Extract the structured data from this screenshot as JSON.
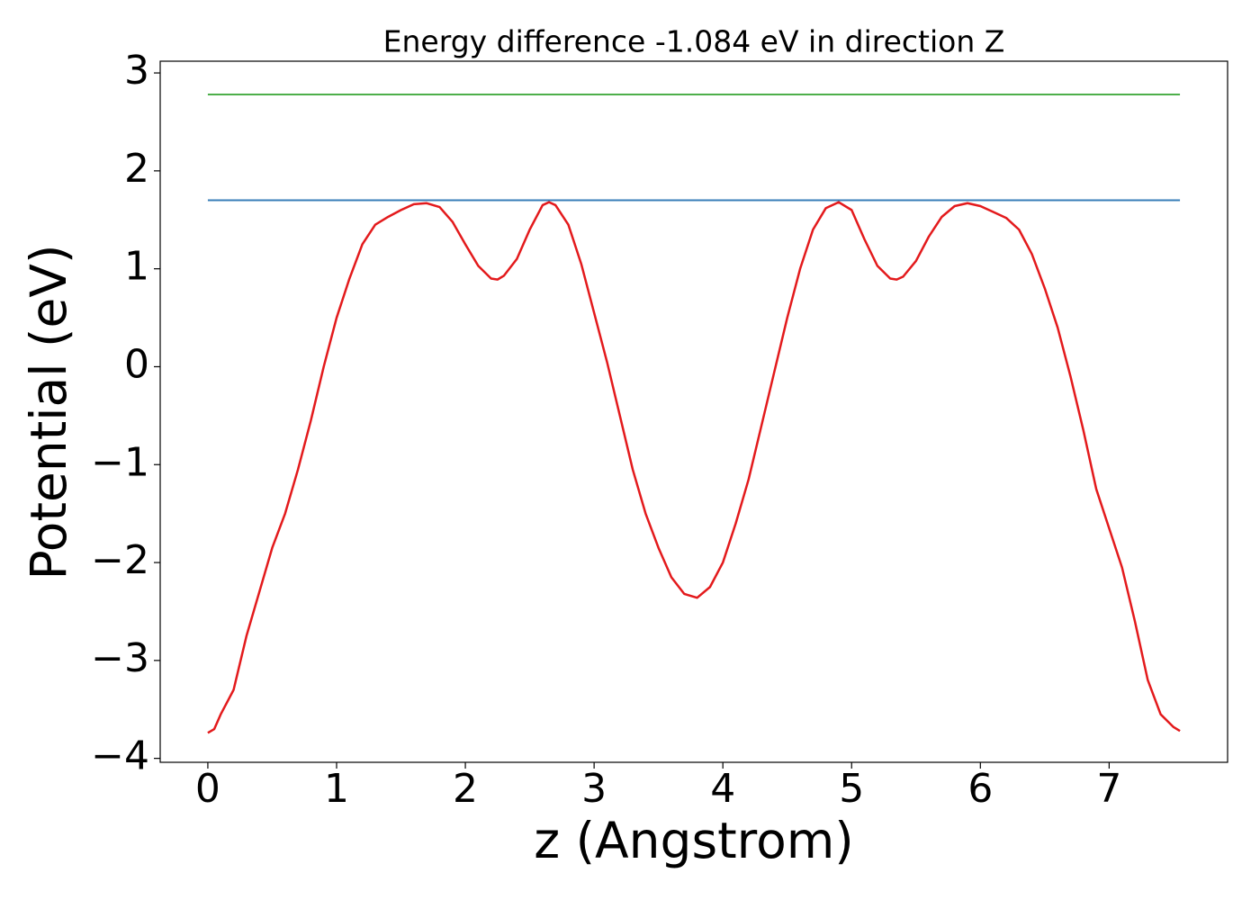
{
  "chart_data": {
    "type": "line",
    "title": "Energy difference -1.084 eV in direction Z",
    "xlabel": "z (Angstrom)",
    "ylabel": "Potential (eV)",
    "xlim": [
      -0.37,
      7.92
    ],
    "ylim": [
      -4.04,
      3.12
    ],
    "xticks": [
      0,
      1,
      2,
      3,
      4,
      5,
      6,
      7
    ],
    "yticks": [
      {
        "value": -4,
        "label": "−4"
      },
      {
        "value": -3,
        "label": "−3"
      },
      {
        "value": -2,
        "label": "−2"
      },
      {
        "value": -1,
        "label": "−1"
      },
      0,
      1,
      2,
      3
    ],
    "series": [
      {
        "color": "#e31a1c",
        "x": [
          0,
          0.05,
          0.1,
          0.2,
          0.3,
          0.4,
          0.5,
          0.6,
          0.7,
          0.8,
          0.9,
          1.0,
          1.1,
          1.2,
          1.3,
          1.4,
          1.5,
          1.6,
          1.7,
          1.8,
          1.9,
          2.0,
          2.1,
          2.2,
          2.25,
          2.3,
          2.4,
          2.5,
          2.6,
          2.65,
          2.7,
          2.8,
          2.9,
          3.0,
          3.1,
          3.2,
          3.3,
          3.4,
          3.5,
          3.6,
          3.7,
          3.8,
          3.9,
          4.0,
          4.1,
          4.2,
          4.3,
          4.4,
          4.5,
          4.6,
          4.7,
          4.8,
          4.9,
          5.0,
          5.1,
          5.2,
          5.3,
          5.35,
          5.4,
          5.5,
          5.6,
          5.7,
          5.8,
          5.9,
          6.0,
          6.1,
          6.2,
          6.3,
          6.4,
          6.5,
          6.6,
          6.7,
          6.8,
          6.9,
          7.0,
          7.1,
          7.2,
          7.3,
          7.4,
          7.5,
          7.55
        ],
        "values": [
          -3.74,
          -3.7,
          -3.55,
          -3.3,
          -2.75,
          -2.3,
          -1.85,
          -1.5,
          -1.05,
          -0.55,
          0,
          0.5,
          0.9,
          1.25,
          1.45,
          1.53,
          1.6,
          1.66,
          1.67,
          1.63,
          1.48,
          1.25,
          1.03,
          0.9,
          0.89,
          0.93,
          1.1,
          1.4,
          1.65,
          1.68,
          1.65,
          1.45,
          1.05,
          0.55,
          0.05,
          -0.5,
          -1.05,
          -1.5,
          -1.85,
          -2.15,
          -2.32,
          -2.36,
          -2.25,
          -2.0,
          -1.6,
          -1.15,
          -0.6,
          -0.05,
          0.5,
          1.0,
          1.4,
          1.62,
          1.68,
          1.6,
          1.3,
          1.03,
          0.9,
          0.89,
          0.92,
          1.08,
          1.33,
          1.53,
          1.64,
          1.67,
          1.64,
          1.58,
          1.52,
          1.4,
          1.15,
          0.8,
          0.4,
          -0.1,
          -0.65,
          -1.25,
          -1.65,
          -2.05,
          -2.6,
          -3.2,
          -3.55,
          -3.68,
          -3.72
        ]
      },
      {
        "color": "#377eb8",
        "x": [
          0,
          7.55
        ],
        "values": [
          1.7,
          1.7
        ]
      },
      {
        "color": "#4daf4a",
        "x": [
          0,
          7.55
        ],
        "values": [
          2.78,
          2.78
        ]
      }
    ]
  }
}
